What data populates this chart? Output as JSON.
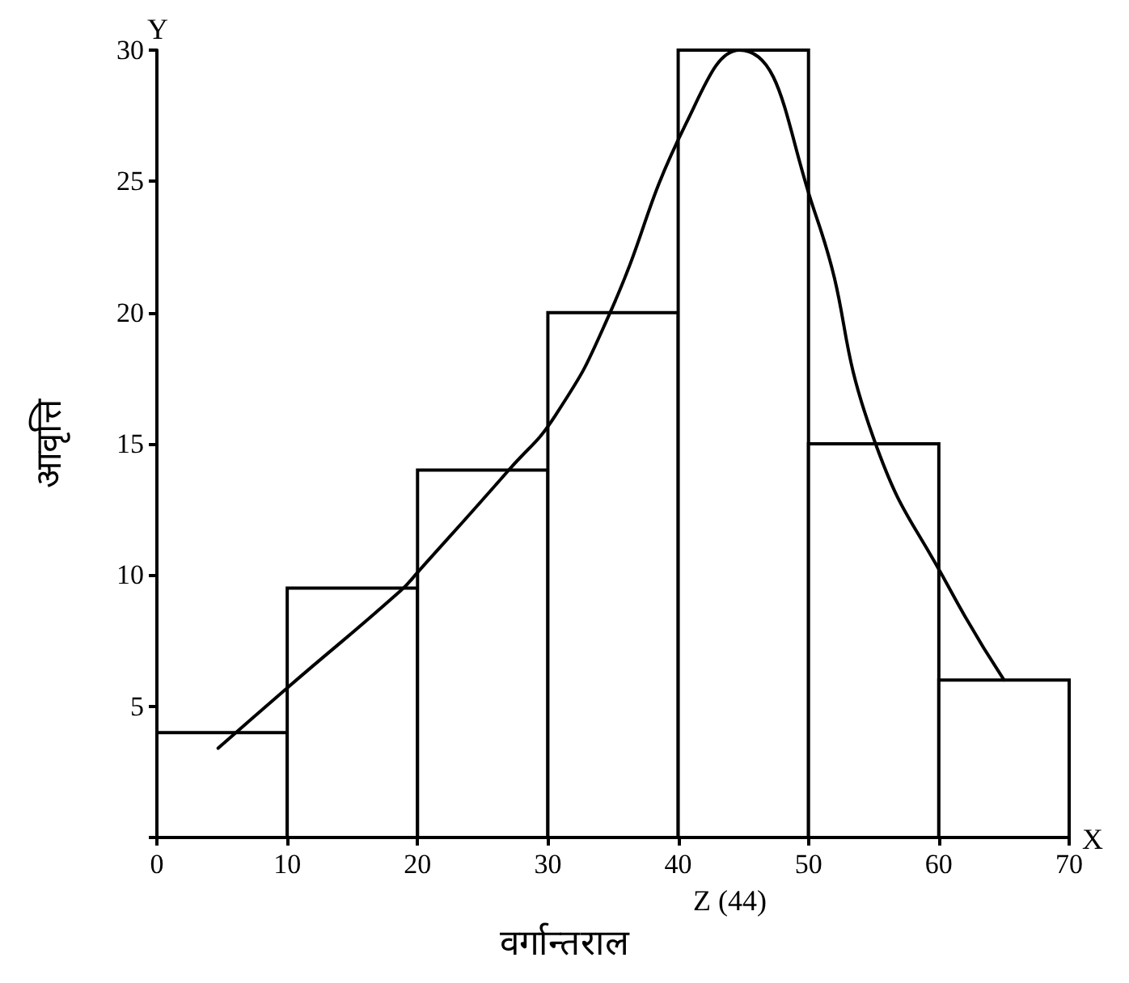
{
  "chart_data": {
    "type": "histogram",
    "xlabel": "वर्गान्तराल",
    "ylabel": "आवृत्ति",
    "bins": [
      0,
      10,
      20,
      30,
      40,
      50,
      60,
      70
    ],
    "values": [
      4,
      9.5,
      14,
      20,
      30,
      15,
      6
    ],
    "color": "#ffffff",
    "series": [
      {
        "type": "line",
        "color": "#000000",
        "x": [
          4.7,
          10,
          18.7,
          20,
          27,
          30.6,
          34.6,
          40.6,
          44.7,
          50.5,
          55,
          60.8,
          65
        ],
        "values": [
          3.4,
          5.7,
          9.4,
          10.1,
          14,
          16.1,
          19.8,
          27.2,
          30,
          23.8,
          15.2,
          9.5,
          6.0
        ]
      }
    ],
    "xlim": [
      0,
      70
    ],
    "xticks": [
      0,
      10,
      20,
      30,
      40,
      50,
      60,
      70
    ],
    "ylim": [
      0,
      30
    ],
    "yticks": [
      {
        "value": 0,
        "label": null
      },
      5,
      10,
      15,
      20,
      25,
      30
    ],
    "grid": false,
    "marker": "none",
    "annotations": [
      "Y",
      "X",
      "Z (44)"
    ]
  }
}
